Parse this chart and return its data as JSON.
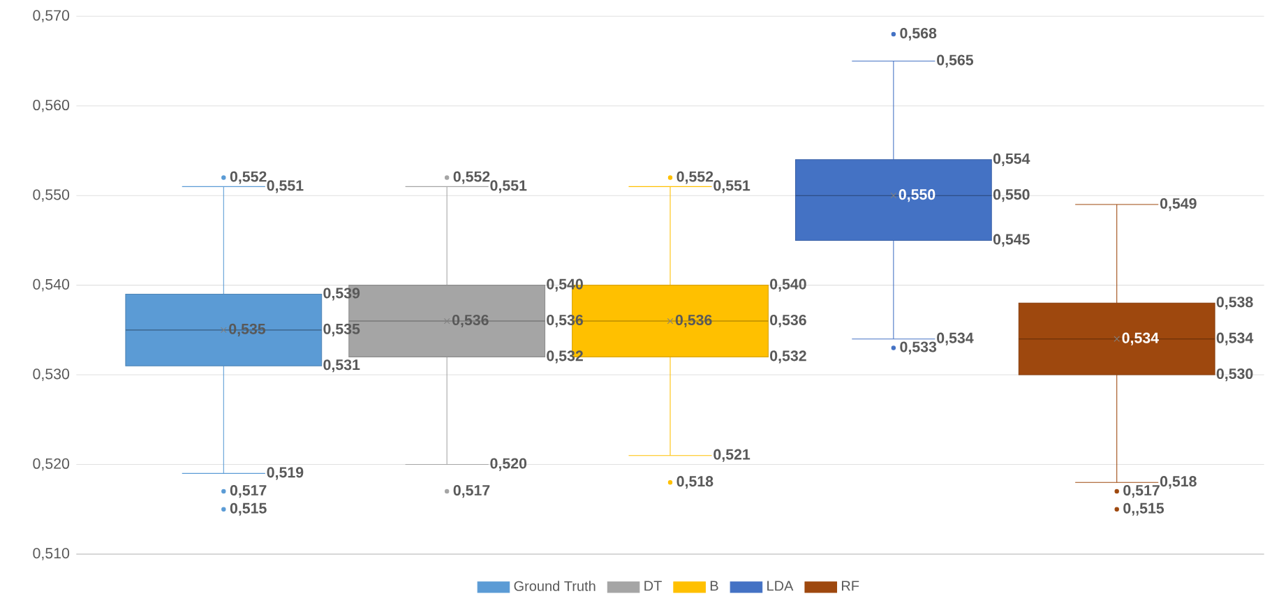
{
  "chart_data": {
    "type": "box",
    "categories": [
      null
    ],
    "series": [
      {
        "name": "Ground Truth",
        "color": "#5b9bd5",
        "boxes": [
          {
            "low": 0.519,
            "q1": 0.531,
            "median": 0.535,
            "q3": 0.539,
            "high": 0.551,
            "mean": 0.535,
            "outliers": [
              0.552,
              0.517,
              0.515
            ]
          }
        ]
      },
      {
        "name": "DT",
        "color": "#a5a5a5",
        "boxes": [
          {
            "low": 0.52,
            "q1": 0.532,
            "median": 0.536,
            "q3": 0.54,
            "high": 0.551,
            "mean": 0.536,
            "outliers": [
              0.552,
              0.517
            ]
          }
        ]
      },
      {
        "name": "B",
        "color": "#ffc000",
        "boxes": [
          {
            "low": 0.521,
            "q1": 0.532,
            "median": 0.536,
            "q3": 0.54,
            "high": 0.551,
            "mean": 0.536,
            "outliers": [
              0.552,
              0.518
            ]
          }
        ]
      },
      {
        "name": "LDA",
        "color": "#4472c4",
        "boxes": [
          {
            "low": 0.534,
            "q1": 0.545,
            "median": 0.55,
            "q3": 0.554,
            "high": 0.565,
            "mean": 0.55,
            "outliers": [
              0.568,
              0.533
            ]
          }
        ]
      },
      {
        "name": "RF",
        "color": "#9e480e",
        "boxes": [
          {
            "low": 0.518,
            "q1": 0.53,
            "median": 0.534,
            "q3": 0.538,
            "high": 0.549,
            "mean": 0.534,
            "outliers": [
              0.517,
              0.515
            ]
          }
        ]
      }
    ],
    "annotations": [
      "0,551",
      "0,519",
      "0,539",
      "0,535",
      "0,531",
      "0,535",
      "0,552",
      "0,517",
      "0,515",
      "0,551",
      "0,520",
      "0,540",
      "0,536",
      "0,532",
      "0,536",
      "0,552",
      "0,517",
      "0,551",
      "0,521",
      "0,540",
      "0,536",
      "0,532",
      "0,536",
      "0,552",
      "0,518",
      "0,565",
      "0,534",
      "0,554",
      "0,550",
      "0,545",
      "0,550",
      "0,568",
      "0,533",
      "0,549",
      "0,518",
      "0,538",
      "0,534",
      "0,530",
      "0,534",
      "0,517",
      "0,,515"
    ],
    "ylim": [
      0.51,
      0.57
    ],
    "yticks": [
      {
        "value": 0.51,
        "label": "0,510"
      },
      {
        "value": 0.52,
        "label": "0,520"
      },
      {
        "value": 0.53,
        "label": "0,530"
      },
      {
        "value": 0.54,
        "label": "0,540"
      },
      {
        "value": 0.55,
        "label": "0,550"
      },
      {
        "value": 0.56,
        "label": "0,560"
      },
      {
        "value": 0.57,
        "label": "0,570"
      }
    ],
    "grid": "y",
    "legend": "bottom",
    "tick_labels": "y",
    "marker": "circle"
  }
}
